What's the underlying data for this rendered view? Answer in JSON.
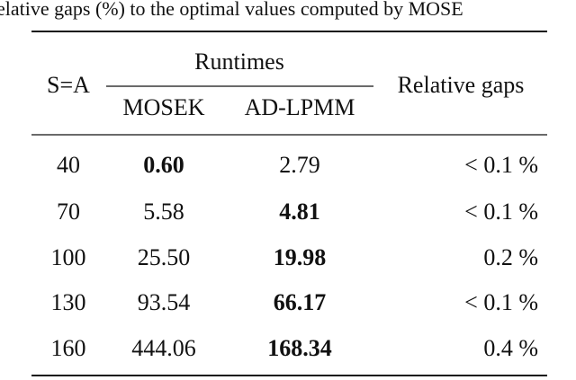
{
  "caption": "elative gaps (%) to the optimal values computed by MOSE",
  "table": {
    "header": {
      "size": "S=A",
      "group": "Runtimes",
      "columns": [
        "MOSEK",
        "AD-LPMM"
      ],
      "gap": "Relative gaps"
    },
    "rows": [
      [
        "40",
        {
          "text": "0.60",
          "bold": true
        },
        "2.79",
        "< 0.1 %"
      ],
      [
        "70",
        "5.58",
        {
          "text": "4.81",
          "bold": true
        },
        "< 0.1 %"
      ],
      [
        "100",
        "25.50",
        {
          "text": "19.98",
          "bold": true
        },
        "0.2 %"
      ],
      [
        "130",
        "93.54",
        {
          "text": "66.17",
          "bold": true
        },
        "< 0.1 %"
      ],
      [
        "160",
        "444.06",
        {
          "text": "168.34",
          "bold": true
        },
        "0.4 %"
      ]
    ]
  }
}
